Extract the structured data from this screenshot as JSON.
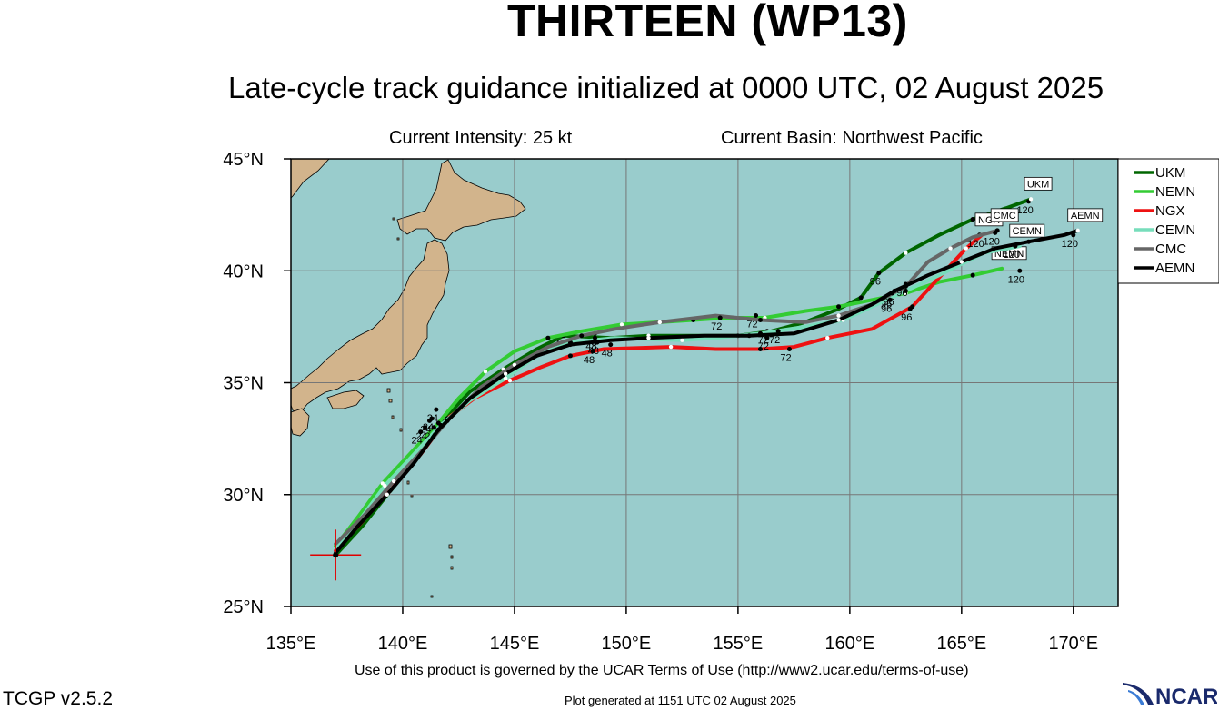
{
  "header": {
    "title": "THIRTEEN (WP13)",
    "subtitle": "Late-cycle track guidance initialized at 0000 UTC, 02 August 2025",
    "intensity": "Current Intensity: 25 kt",
    "basin": "Current Basin: Northwest Pacific"
  },
  "footer": {
    "terms": "Use of this product is governed by the UCAR Terms of Use (http://www2.ucar.edu/terms-of-use)",
    "version": "TCGP v2.5.2",
    "generated": "Plot generated at 1151 UTC   02 August 2025",
    "logo_text": "NCAR"
  },
  "map": {
    "lon_range": [
      135,
      172
    ],
    "lat_range": [
      25,
      45
    ],
    "lon_ticks": [
      135,
      140,
      145,
      150,
      155,
      160,
      165,
      170
    ],
    "lat_ticks": [
      25,
      30,
      35,
      40,
      45
    ],
    "lon_labels": [
      "135°E",
      "140°E",
      "145°E",
      "150°E",
      "155°E",
      "160°E",
      "165°E",
      "170°E"
    ],
    "lat_labels": [
      "25°N",
      "30°N",
      "35°N",
      "40°N",
      "45°N"
    ],
    "grid": true,
    "ocean_color": "#99cccc",
    "land_color": "#d2b48c",
    "current_position": {
      "lon": 137.0,
      "lat": 27.3
    },
    "current_marker_color": "#e00000"
  },
  "legend": {
    "placement": "right",
    "items": [
      {
        "name": "UKM",
        "color": "#006600"
      },
      {
        "name": "NEMN",
        "color": "#33cc33"
      },
      {
        "name": "NGX",
        "color": "#ee1111"
      },
      {
        "name": "CEMN",
        "color": "#77ddbb"
      },
      {
        "name": "CMC",
        "color": "#666666"
      },
      {
        "name": "AEMN",
        "color": "#000000"
      }
    ]
  },
  "chart_data": {
    "type": "line",
    "x_unit": "degrees east longitude",
    "y_unit": "degrees north latitude",
    "series": [
      {
        "name": "UKM",
        "color": "#006600",
        "end_tag": "UKM",
        "end_hour": "120",
        "points": [
          [
            137.0,
            27.3
          ],
          [
            138.2,
            28.6
          ],
          [
            139.4,
            30.1
          ],
          [
            140.6,
            31.6
          ],
          [
            141.8,
            33.3
          ],
          [
            143.0,
            34.6
          ],
          [
            144.5,
            35.6
          ],
          [
            146.0,
            36.5
          ],
          [
            147.2,
            37.1
          ],
          [
            149.3,
            37.0
          ],
          [
            151.0,
            37.1
          ],
          [
            153.5,
            37.1
          ],
          [
            155.0,
            37.1
          ],
          [
            156.5,
            37.3
          ],
          [
            158.0,
            37.7
          ],
          [
            159.5,
            38.3
          ],
          [
            160.5,
            38.8
          ],
          [
            161.3,
            39.9
          ],
          [
            162.5,
            40.8
          ],
          [
            164.0,
            41.6
          ],
          [
            165.5,
            42.3
          ],
          [
            167.0,
            42.8
          ],
          [
            168.1,
            43.2
          ]
        ],
        "labels": [
          [
            141.5,
            33.8,
            "24"
          ],
          [
            147.2,
            37.1,
            "48"
          ],
          [
            156.3,
            37.3,
            "72"
          ],
          [
            161.3,
            39.9,
            "96"
          ],
          [
            168.0,
            43.1,
            "120"
          ]
        ]
      },
      {
        "name": "NEMN",
        "color": "#33cc33",
        "end_tag": "NEMN",
        "end_hour": "120",
        "points": [
          [
            137.0,
            27.7
          ],
          [
            138.0,
            29.0
          ],
          [
            139.1,
            30.5
          ],
          [
            140.4,
            31.9
          ],
          [
            141.6,
            33.2
          ],
          [
            142.5,
            34.3
          ],
          [
            143.7,
            35.5
          ],
          [
            145.0,
            36.4
          ],
          [
            146.5,
            37.0
          ],
          [
            148.0,
            37.3
          ],
          [
            149.8,
            37.6
          ],
          [
            151.5,
            37.7
          ],
          [
            153.0,
            37.8
          ],
          [
            154.5,
            37.9
          ],
          [
            156.2,
            37.9
          ],
          [
            158.0,
            38.2
          ],
          [
            159.5,
            38.4
          ],
          [
            161.0,
            38.7
          ],
          [
            162.5,
            39.0
          ],
          [
            164.0,
            39.5
          ],
          [
            165.5,
            39.8
          ],
          [
            166.8,
            40.1
          ]
        ],
        "labels": [
          [
            141.2,
            33.3,
            "24"
          ],
          [
            148.6,
            37.2,
            "48"
          ],
          [
            155.8,
            38.0,
            "72"
          ],
          [
            161.8,
            38.9,
            "96"
          ],
          [
            167.6,
            40.0,
            "120"
          ]
        ]
      },
      {
        "name": "NGX",
        "color": "#ee1111",
        "end_tag": "NGX",
        "end_hour": "120",
        "points": [
          [
            137.0,
            27.5
          ],
          [
            138.2,
            28.8
          ],
          [
            139.4,
            30.3
          ],
          [
            140.8,
            31.8
          ],
          [
            142.0,
            33.4
          ],
          [
            143.2,
            34.3
          ],
          [
            144.8,
            35.1
          ],
          [
            146.2,
            35.7
          ],
          [
            147.5,
            36.2
          ],
          [
            149.0,
            36.5
          ],
          [
            152.0,
            36.6
          ],
          [
            154.0,
            36.5
          ],
          [
            156.0,
            36.5
          ],
          [
            157.5,
            36.6
          ],
          [
            159.0,
            37.0
          ],
          [
            161.0,
            37.4
          ],
          [
            162.8,
            38.4
          ],
          [
            164.0,
            39.7
          ],
          [
            165.2,
            41.0
          ],
          [
            165.9,
            41.6
          ]
        ],
        "labels": [
          [
            140.8,
            32.8,
            "24"
          ],
          [
            148.5,
            36.4,
            "48"
          ],
          [
            157.3,
            36.5,
            "72"
          ],
          [
            162.7,
            38.3,
            "96"
          ],
          [
            165.8,
            41.6,
            "120"
          ]
        ]
      },
      {
        "name": "CEMN",
        "color": "#77ddbb",
        "end_tag": "CEMN",
        "end_hour": "120",
        "points": [
          [
            137.0,
            27.6
          ],
          [
            138.1,
            28.9
          ],
          [
            139.2,
            30.4
          ],
          [
            140.5,
            31.8
          ],
          [
            141.7,
            33.1
          ],
          [
            143.0,
            34.2
          ],
          [
            144.6,
            35.2
          ],
          [
            146.0,
            36.2
          ],
          [
            147.5,
            36.8
          ],
          [
            149.5,
            37.0
          ],
          [
            152.5,
            36.9
          ],
          [
            154.0,
            37.0
          ],
          [
            156.0,
            37.2
          ],
          [
            158.0,
            37.5
          ],
          [
            159.7,
            37.8
          ],
          [
            161.0,
            38.4
          ],
          [
            162.5,
            39.1
          ],
          [
            164.0,
            39.8
          ],
          [
            166.0,
            40.8
          ],
          [
            167.6,
            41.1
          ]
        ],
        "labels": [
          [
            141.0,
            33.0,
            "24"
          ],
          [
            148.7,
            36.8,
            "48"
          ],
          [
            156.8,
            37.3,
            "72"
          ],
          [
            161.8,
            38.7,
            "96"
          ],
          [
            167.4,
            41.1,
            "120"
          ]
        ]
      },
      {
        "name": "CMC",
        "color": "#666666",
        "end_tag": "CMC",
        "end_hour": "120",
        "points": [
          [
            137.0,
            27.8
          ],
          [
            138.3,
            29.1
          ],
          [
            139.6,
            30.6
          ],
          [
            140.9,
            32.0
          ],
          [
            142.0,
            33.3
          ],
          [
            143.5,
            34.8
          ],
          [
            145.0,
            35.8
          ],
          [
            146.5,
            36.6
          ],
          [
            148.0,
            37.1
          ],
          [
            149.5,
            37.4
          ],
          [
            151.5,
            37.7
          ],
          [
            154.0,
            38.0
          ],
          [
            156.0,
            37.8
          ],
          [
            158.0,
            37.7
          ],
          [
            159.5,
            38.0
          ],
          [
            161.0,
            38.5
          ],
          [
            162.5,
            39.3
          ],
          [
            163.5,
            40.4
          ],
          [
            164.5,
            41.0
          ],
          [
            165.5,
            41.5
          ],
          [
            166.6,
            41.8
          ]
        ],
        "labels": [
          [
            141.3,
            33.4,
            "24"
          ],
          [
            148.6,
            37.0,
            "48"
          ],
          [
            154.2,
            37.9,
            "72"
          ],
          [
            161.9,
            39.0,
            "96"
          ],
          [
            166.5,
            41.7,
            "120"
          ]
        ]
      },
      {
        "name": "AEMN",
        "color": "#000000",
        "end_tag": "AEMN",
        "end_hour": "120",
        "points": [
          [
            137.0,
            27.4
          ],
          [
            138.0,
            28.6
          ],
          [
            139.3,
            30.0
          ],
          [
            140.5,
            31.4
          ],
          [
            141.6,
            32.9
          ],
          [
            143.0,
            34.3
          ],
          [
            144.6,
            35.4
          ],
          [
            146.0,
            36.2
          ],
          [
            147.5,
            36.7
          ],
          [
            149.3,
            36.9
          ],
          [
            151.0,
            37.0
          ],
          [
            153.5,
            37.1
          ],
          [
            155.5,
            37.1
          ],
          [
            157.5,
            37.2
          ],
          [
            159.5,
            37.8
          ],
          [
            161.0,
            38.5
          ],
          [
            162.0,
            39.1
          ],
          [
            163.5,
            39.8
          ],
          [
            165.0,
            40.4
          ],
          [
            166.5,
            41.0
          ],
          [
            168.0,
            41.3
          ],
          [
            169.6,
            41.6
          ],
          [
            170.2,
            41.8
          ]
        ],
        "labels": [
          [
            141.4,
            33.0,
            "24"
          ],
          [
            149.3,
            36.7,
            "48"
          ],
          [
            156.3,
            37.0,
            "72"
          ],
          [
            162.5,
            39.4,
            "96"
          ],
          [
            170.0,
            41.6,
            "120"
          ]
        ]
      }
    ]
  }
}
